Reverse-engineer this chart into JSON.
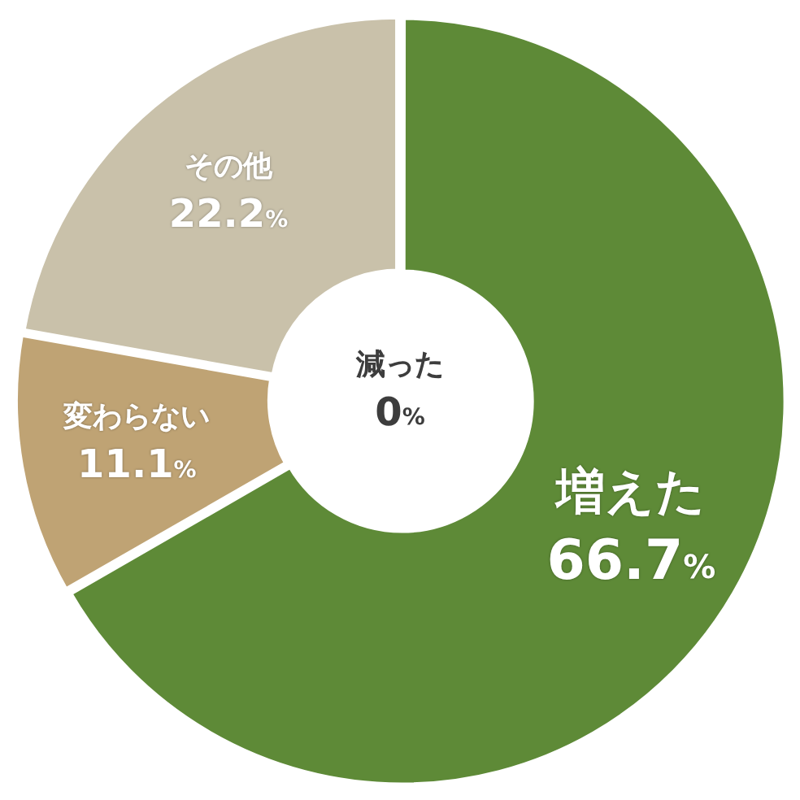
{
  "chart_data": {
    "type": "donut",
    "categories": [
      "増えた",
      "変わらない",
      "その他",
      "減った"
    ],
    "values": [
      66.7,
      11.1,
      22.2,
      0
    ],
    "colors": [
      "#5e8a37",
      "#bfa374",
      "#c9c1aa",
      "#ffffff"
    ],
    "value_labels": [
      "66.7%",
      "11.1%",
      "22.2%",
      "0%"
    ],
    "legend": false
  }
}
